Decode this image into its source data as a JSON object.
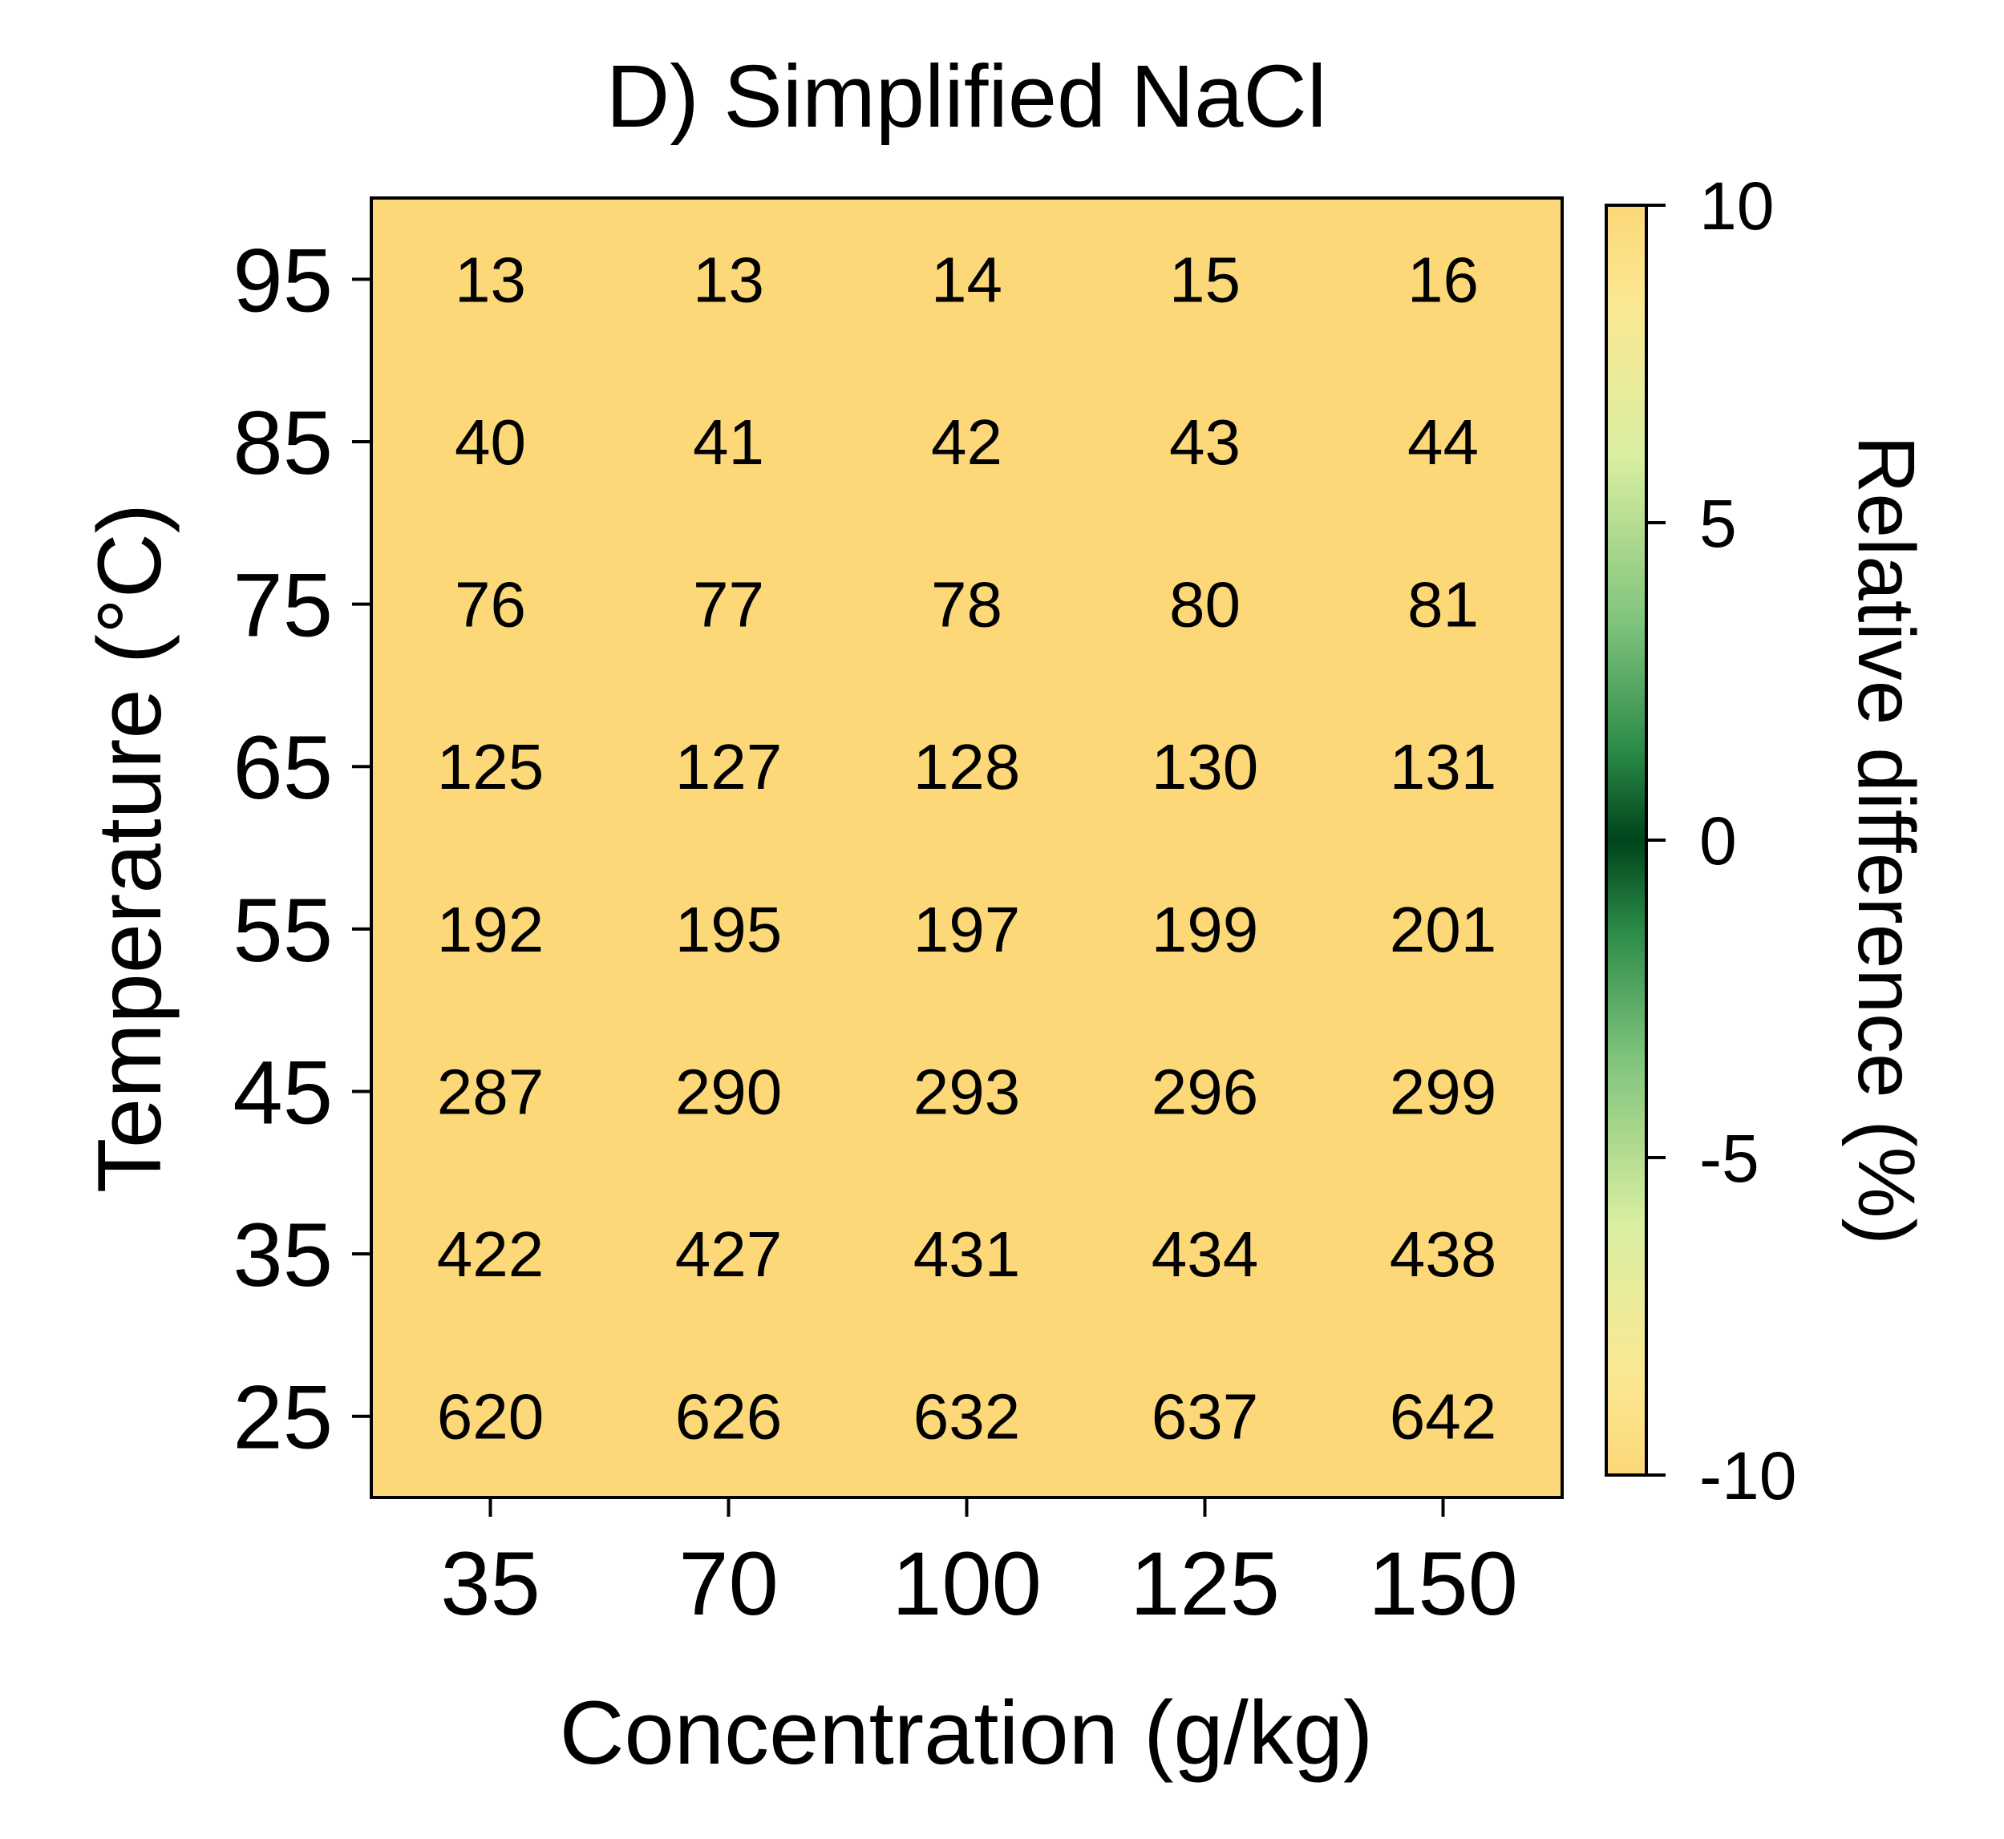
{
  "chart_data": {
    "type": "heatmap",
    "title": "D) Simplified NaCl",
    "xlabel": "Concentration (g/kg)",
    "ylabel": "Temperature (°C)",
    "x": [
      "35",
      "70",
      "100",
      "125",
      "150"
    ],
    "y": [
      "95",
      "85",
      "75",
      "65",
      "55",
      "45",
      "35",
      "25"
    ],
    "values": [
      [
        13,
        13,
        14,
        15,
        16
      ],
      [
        40,
        41,
        42,
        43,
        44
      ],
      [
        76,
        77,
        78,
        80,
        81
      ],
      [
        125,
        127,
        128,
        130,
        131
      ],
      [
        192,
        195,
        197,
        199,
        201
      ],
      [
        287,
        290,
        293,
        296,
        299
      ],
      [
        422,
        427,
        431,
        434,
        438
      ],
      [
        620,
        626,
        632,
        637,
        642
      ]
    ],
    "colorbar": {
      "label": "Relative difference (%)",
      "range": [
        -10,
        10
      ],
      "ticks": [
        "10",
        "5",
        "0",
        "-5",
        "-10"
      ],
      "colormap": "YlGn-Greens diverging",
      "colors": [
        "#fcd878",
        "#fbe893",
        "#d8eea1",
        "#7fc37c",
        "#2a8a47",
        "#00441b",
        "#2a8a47",
        "#7fc37c",
        "#d8eea1",
        "#fbe893",
        "#fcd878"
      ]
    },
    "cell_color": "#fcd878"
  }
}
